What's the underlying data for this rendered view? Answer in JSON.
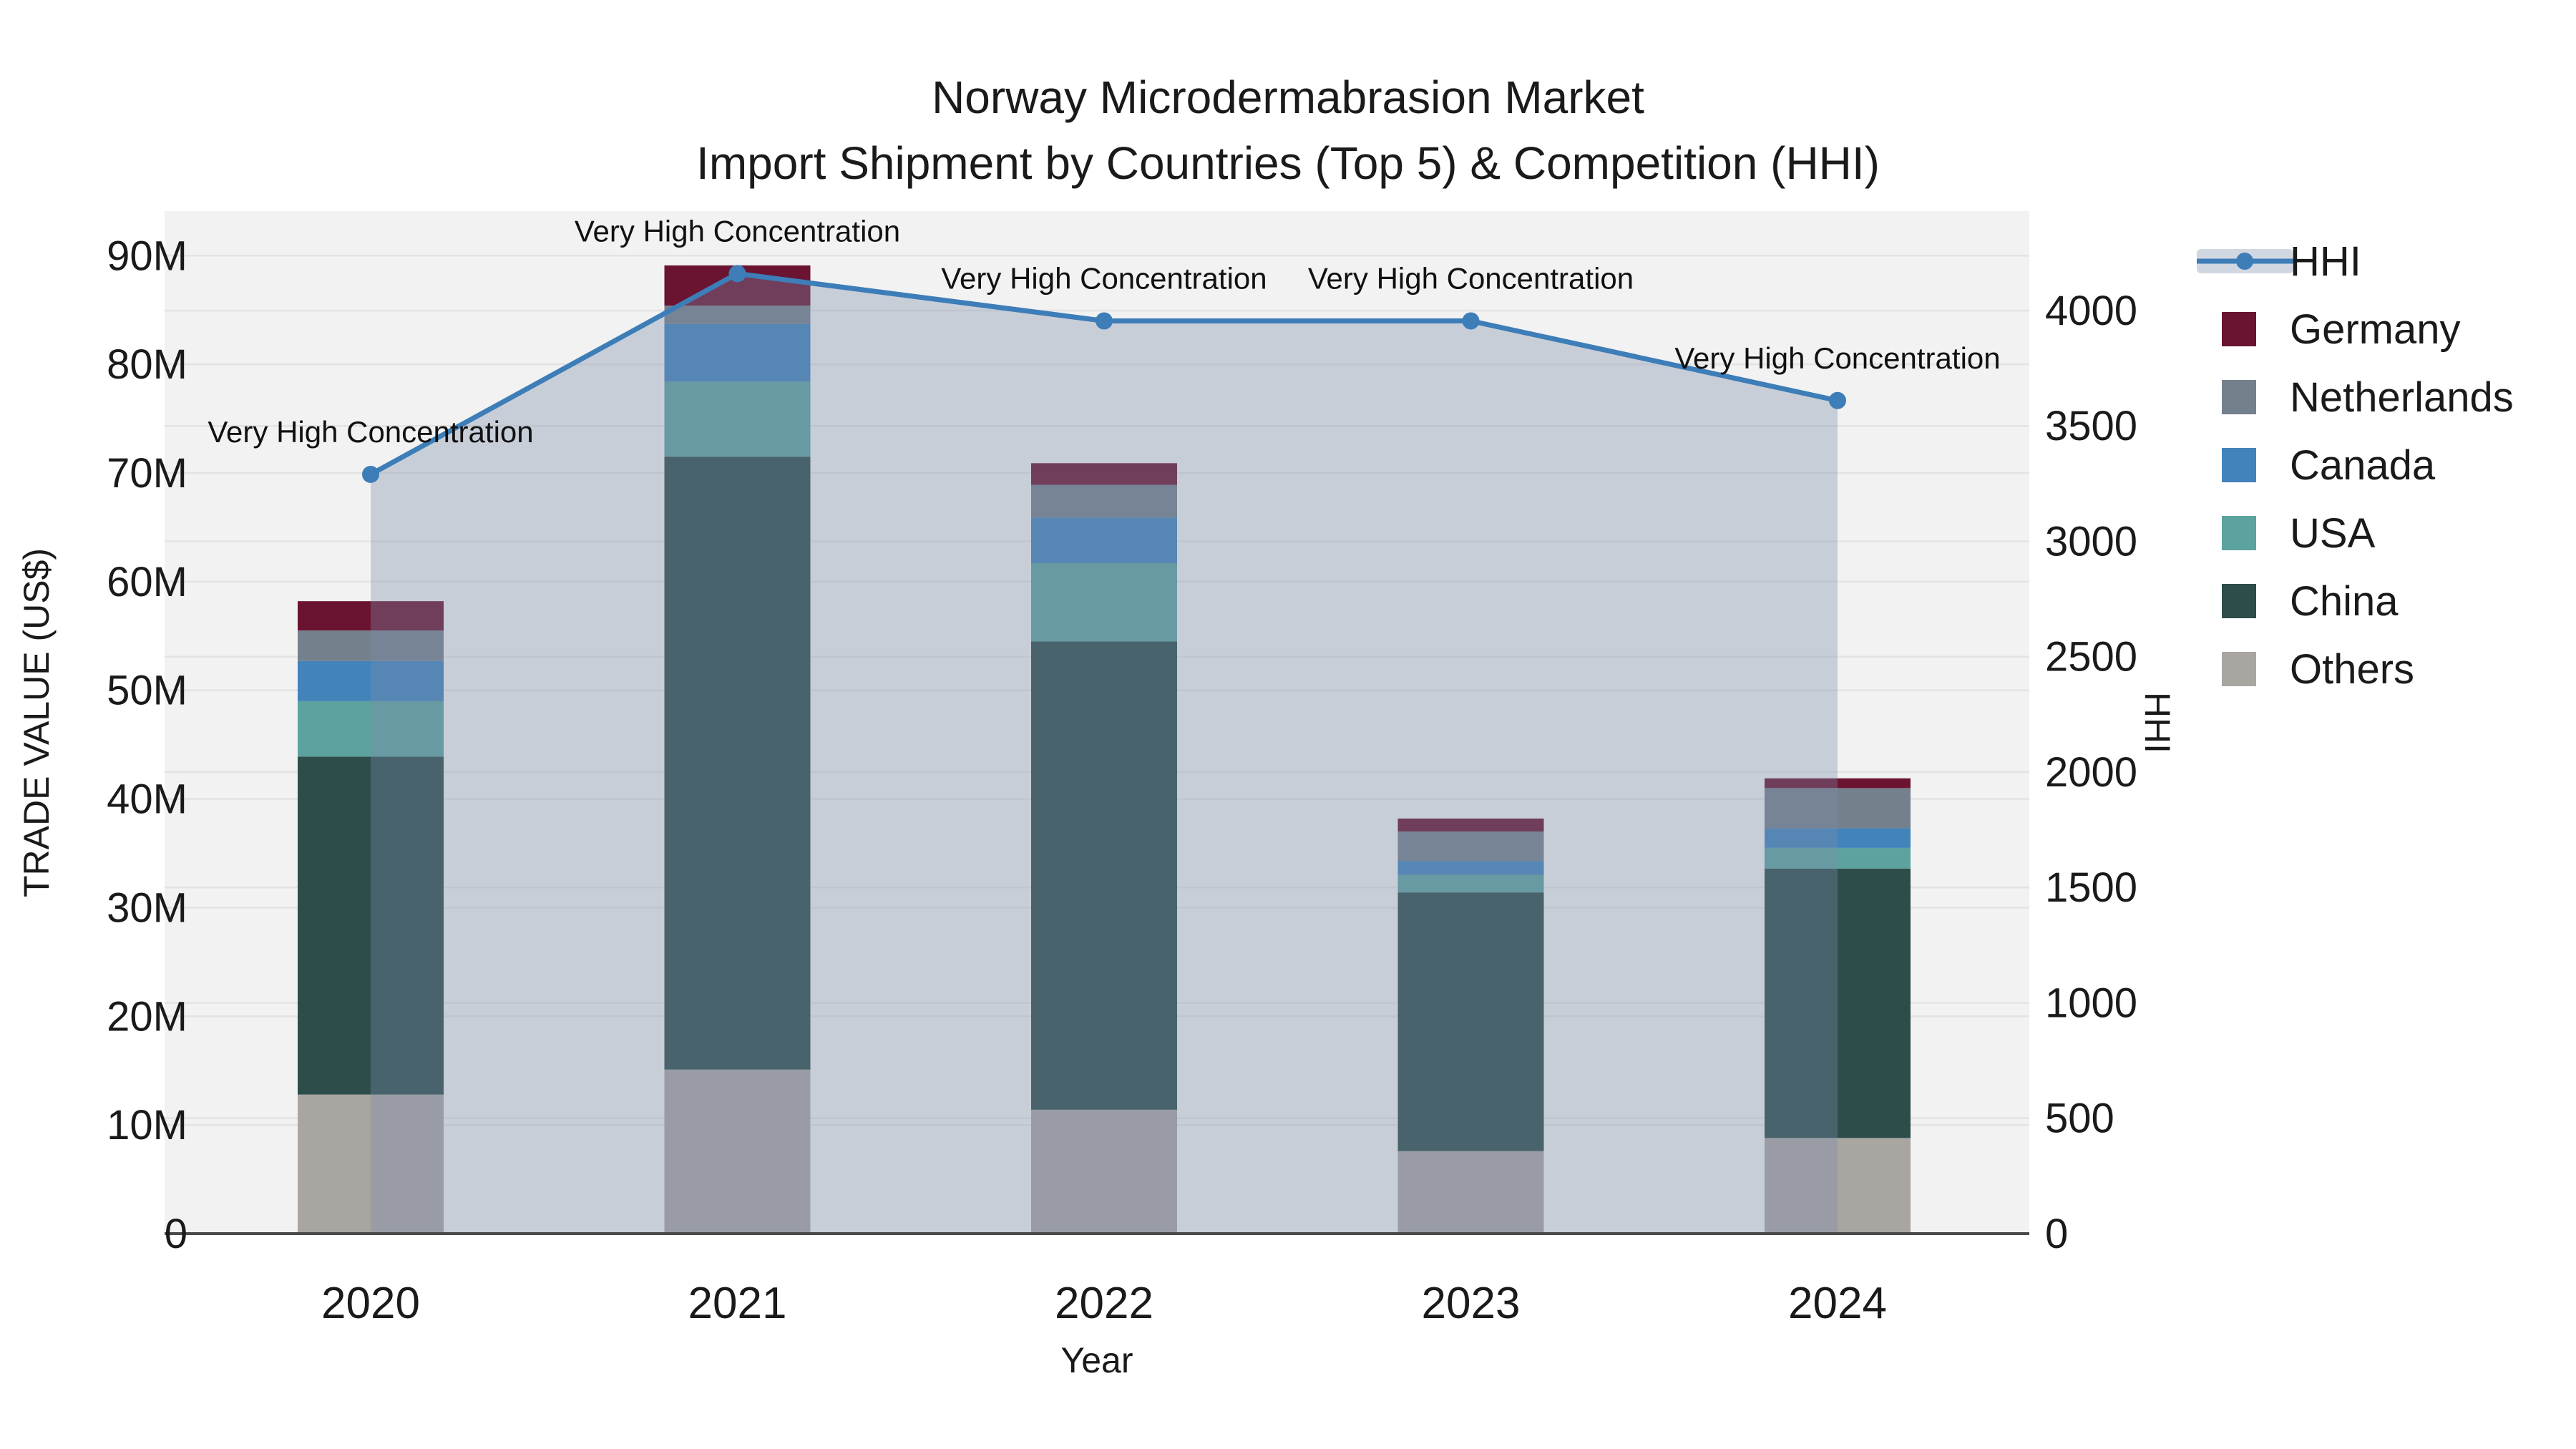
{
  "title": {
    "line1": "Norway Microdermabrasion Market",
    "line2": "Import Shipment by Countries (Top 5) & Competition (HHI)"
  },
  "chart_data": {
    "type": "bar",
    "stacked": true,
    "categories": [
      "2020",
      "2021",
      "2022",
      "2023",
      "2024"
    ],
    "series": [
      {
        "name": "Others",
        "color": "#a9a5a1",
        "values": [
          12.8,
          15.1,
          11.4,
          7.6,
          8.8
        ]
      },
      {
        "name": "China",
        "color": "#2d4d4a",
        "values": [
          31.1,
          56.4,
          43.1,
          23.8,
          24.8
        ]
      },
      {
        "name": "USA",
        "color": "#5ca29f",
        "values": [
          5.1,
          6.9,
          7.2,
          1.6,
          1.9
        ]
      },
      {
        "name": "Canada",
        "color": "#4283ba",
        "values": [
          3.7,
          5.3,
          4.2,
          1.3,
          1.8
        ]
      },
      {
        "name": "Netherlands",
        "color": "#75808d",
        "values": [
          2.8,
          1.7,
          3.0,
          2.7,
          3.7
        ]
      },
      {
        "name": "Germany",
        "color": "#6a1432",
        "values": [
          2.7,
          3.7,
          2.0,
          1.2,
          0.9
        ]
      }
    ],
    "totals": [
      58.2,
      89.1,
      70.9,
      38.2,
      41.9
    ],
    "line_series": {
      "name": "HHI",
      "color": "#3d7db8",
      "area_fill": "rgba(122,139,168,0.35)",
      "values": [
        3290,
        4160,
        3955,
        3955,
        3610
      ]
    },
    "annotations": [
      "Very High Concentration",
      "Very High Concentration",
      "Very High Concentration",
      "Very High Concentration",
      "Very High Concentration"
    ],
    "xlabel": "Year",
    "ylabel_left": "TRADE VALUE (US$)",
    "ylabel_right": "HHI",
    "ylim_left": [
      0,
      94.1
    ],
    "ylim_right": [
      0,
      4431
    ],
    "yticks_left": [
      {
        "v": 0,
        "label": "0"
      },
      {
        "v": 10,
        "label": "10M"
      },
      {
        "v": 20,
        "label": "20M"
      },
      {
        "v": 30,
        "label": "30M"
      },
      {
        "v": 40,
        "label": "40M"
      },
      {
        "v": 50,
        "label": "50M"
      },
      {
        "v": 60,
        "label": "60M"
      },
      {
        "v": 70,
        "label": "70M"
      },
      {
        "v": 80,
        "label": "80M"
      },
      {
        "v": 90,
        "label": "90M"
      }
    ],
    "yticks_right": [
      {
        "v": 0,
        "label": "0"
      },
      {
        "v": 500,
        "label": "500"
      },
      {
        "v": 1000,
        "label": "1000"
      },
      {
        "v": 1500,
        "label": "1500"
      },
      {
        "v": 2000,
        "label": "2000"
      },
      {
        "v": 2500,
        "label": "2500"
      },
      {
        "v": 3000,
        "label": "3000"
      },
      {
        "v": 3500,
        "label": "3500"
      },
      {
        "v": 4000,
        "label": "4000"
      }
    ],
    "legend_order": [
      "HHI",
      "Germany",
      "Netherlands",
      "Canada",
      "USA",
      "China",
      "Others"
    ],
    "grid": true,
    "legend_position": "right"
  },
  "colors": {
    "plot_bg": "#f2f2f2",
    "grid": "#e3e3e3",
    "axis_line": "#4a4a4a",
    "text": "#1a1a1a"
  }
}
